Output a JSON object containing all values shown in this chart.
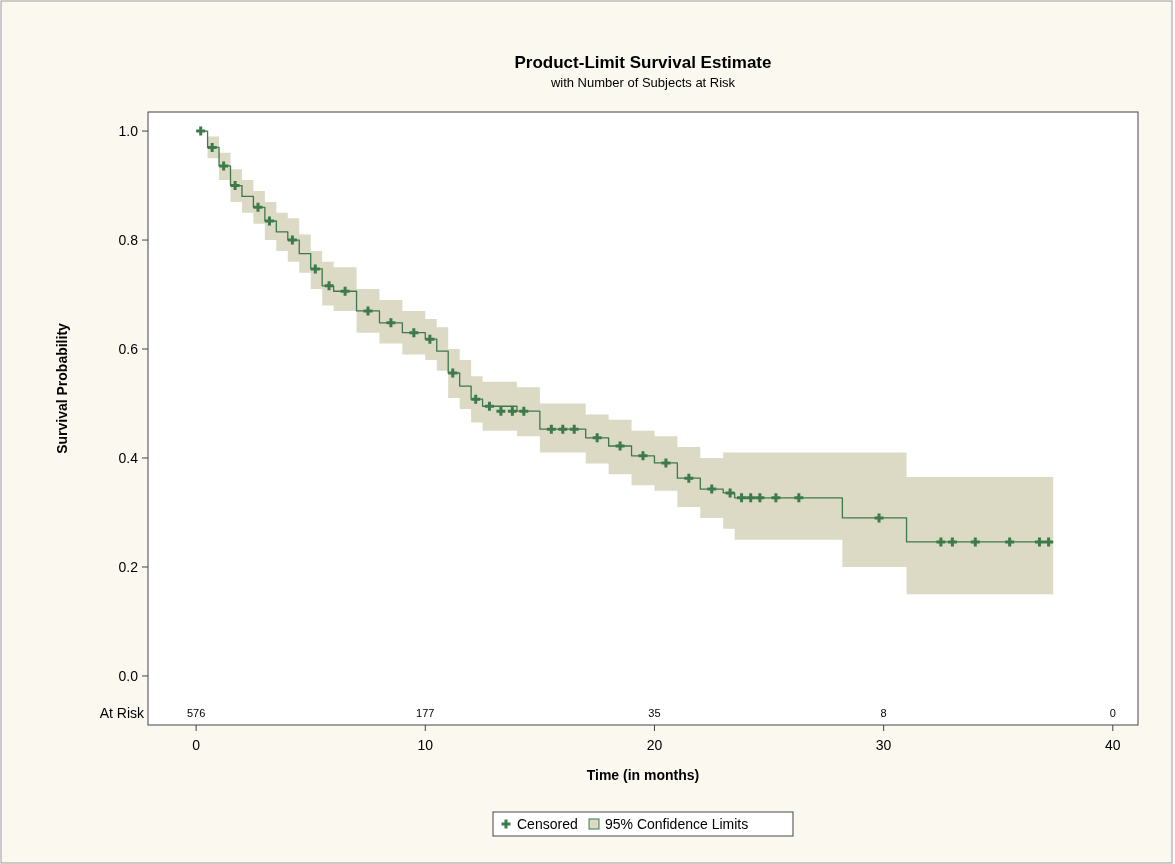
{
  "chart_data": {
    "type": "step",
    "title": "Product-Limit Survival Estimate",
    "subtitle": "with Number of Subjects at Risk",
    "xlabel": "Time (in months)",
    "ylabel": "Survival Probability",
    "xlim": [
      -2.1,
      41.1
    ],
    "xticks": [
      0,
      10,
      20,
      30,
      40
    ],
    "ylim": [
      -0.09,
      1.035
    ],
    "yticks": [
      {
        "value": 0,
        "label": "0.0"
      },
      0.2,
      0.4,
      0.6,
      0.8,
      {
        "value": 1,
        "label": "1.0"
      }
    ],
    "legend": "bottom",
    "series": [
      {
        "name": "95% Confidence Limits",
        "color": "#3d7a4a",
        "lower": [
          1,
          0.95,
          0.91,
          0.87,
          0.85,
          0.83,
          0.8,
          0.78,
          0.76,
          0.74,
          0.71,
          0.68,
          0.67,
          0.63,
          0.61,
          0.59,
          0.58,
          0.56,
          0.51,
          0.49,
          0.465,
          0.45,
          0.44,
          0.41,
          0.39,
          0.37,
          0.35,
          0.34,
          0.31,
          0.29,
          0.27,
          0.25,
          0.2,
          0.15,
          0.15
        ],
        "upper": [
          1,
          0.99,
          0.96,
          0.93,
          0.91,
          0.89,
          0.87,
          0.85,
          0.84,
          0.81,
          0.78,
          0.76,
          0.75,
          0.71,
          0.69,
          0.67,
          0.655,
          0.64,
          0.6,
          0.58,
          0.55,
          0.54,
          0.53,
          0.5,
          0.48,
          0.47,
          0.45,
          0.44,
          0.42,
          0.4,
          0.41,
          0.41,
          0.41,
          0.365,
          0.365
        ],
        "x": [
          0,
          0.5,
          1,
          1.5,
          2,
          2.5,
          3,
          3.5,
          4,
          4.5,
          5,
          5.5,
          6,
          7,
          8,
          9,
          10,
          10.5,
          11,
          11.5,
          12,
          12.5,
          14,
          15,
          17,
          18,
          19,
          20,
          21,
          22,
          23,
          23.5,
          28.2,
          31,
          37.4
        ],
        "values": [
          1,
          0.97,
          0.936,
          0.9,
          0.88,
          0.86,
          0.835,
          0.815,
          0.8,
          0.775,
          0.747,
          0.716,
          0.706,
          0.67,
          0.648,
          0.63,
          0.618,
          0.596,
          0.556,
          0.532,
          0.508,
          0.495,
          0.486,
          0.453,
          0.437,
          0.422,
          0.404,
          0.391,
          0.363,
          0.343,
          0.336,
          0.327,
          0.29,
          0.246,
          0.246
        ]
      },
      {
        "type": "scatter",
        "name": "Censored",
        "color": "#3d7a4a",
        "marker": "cross",
        "x": [
          0.2,
          0.7,
          1.2,
          1.7,
          2.7,
          3.2,
          4.2,
          5.2,
          5.8,
          6.5,
          7.5,
          8.5,
          9.5,
          10.2,
          11.2,
          12.2,
          12.8,
          13.3,
          13.8,
          14.3,
          15.5,
          16,
          16.5,
          17.5,
          18.5,
          19.5,
          20.5,
          21.5,
          22.5,
          23.3,
          23.8,
          24.2,
          24.6,
          25.3,
          26.3,
          29.8,
          32.5,
          33,
          34,
          35.5,
          36.8,
          37.2
        ],
        "values": [
          1,
          0.97,
          0.936,
          0.9,
          0.86,
          0.835,
          0.8,
          0.747,
          0.716,
          0.706,
          0.67,
          0.648,
          0.63,
          0.618,
          0.556,
          0.508,
          0.495,
          0.486,
          0.486,
          0.486,
          0.453,
          0.453,
          0.453,
          0.437,
          0.422,
          0.404,
          0.391,
          0.363,
          0.343,
          0.336,
          0.327,
          0.327,
          0.327,
          0.327,
          0.327,
          0.29,
          0.246,
          0.246,
          0.246,
          0.246,
          0.246,
          0.246
        ]
      }
    ],
    "annotations": [
      "At Risk",
      "576",
      "177",
      "35",
      "8",
      "0"
    ]
  }
}
